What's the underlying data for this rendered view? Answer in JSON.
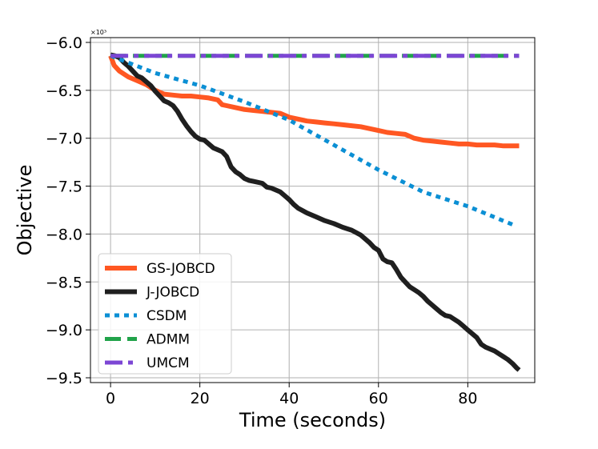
{
  "chart_data": {
    "type": "line",
    "title": "",
    "xlabel": "Time (seconds)",
    "ylabel": "Objective",
    "y_scale_label": "×10³",
    "xlim": [
      -4.5,
      95
    ],
    "ylim": [
      -9.55,
      -5.95
    ],
    "x_ticks": [
      0,
      20,
      40,
      60,
      80
    ],
    "x_tick_labels": [
      "0",
      "20",
      "40",
      "60",
      "80"
    ],
    "y_ticks": [
      -6.0,
      -6.5,
      -7.0,
      -7.5,
      -8.0,
      -8.5,
      -9.0,
      -9.5
    ],
    "y_tick_labels": [
      "−6.0",
      "−6.5",
      "−7.0",
      "−7.5",
      "−8.0",
      "−8.5",
      "−9.0",
      "−9.5"
    ],
    "grid": true,
    "legend_position": "lower-left",
    "series": [
      {
        "name": "GS-JOBCD",
        "color": "#ff5722",
        "dash": "solid",
        "points": [
          [
            0,
            -6.14
          ],
          [
            0.8,
            -6.24
          ],
          [
            2,
            -6.3
          ],
          [
            4,
            -6.36
          ],
          [
            6,
            -6.4
          ],
          [
            8,
            -6.44
          ],
          [
            10,
            -6.5
          ],
          [
            12,
            -6.54
          ],
          [
            14,
            -6.55
          ],
          [
            16,
            -6.56
          ],
          [
            18,
            -6.56
          ],
          [
            20,
            -6.57
          ],
          [
            22,
            -6.58
          ],
          [
            24,
            -6.6
          ],
          [
            25,
            -6.65
          ],
          [
            26,
            -6.66
          ],
          [
            28,
            -6.68
          ],
          [
            30,
            -6.7
          ],
          [
            32,
            -6.71
          ],
          [
            34,
            -6.72
          ],
          [
            36,
            -6.73
          ],
          [
            38,
            -6.74
          ],
          [
            40,
            -6.78
          ],
          [
            42,
            -6.8
          ],
          [
            44,
            -6.82
          ],
          [
            46,
            -6.83
          ],
          [
            48,
            -6.84
          ],
          [
            50,
            -6.85
          ],
          [
            52,
            -6.86
          ],
          [
            54,
            -6.87
          ],
          [
            56,
            -6.88
          ],
          [
            58,
            -6.9
          ],
          [
            60,
            -6.92
          ],
          [
            62,
            -6.94
          ],
          [
            64,
            -6.95
          ],
          [
            66,
            -6.96
          ],
          [
            68,
            -7.0
          ],
          [
            70,
            -7.02
          ],
          [
            72,
            -7.03
          ],
          [
            74,
            -7.04
          ],
          [
            76,
            -7.05
          ],
          [
            78,
            -7.06
          ],
          [
            80,
            -7.06
          ],
          [
            82,
            -7.07
          ],
          [
            84,
            -7.07
          ],
          [
            86,
            -7.07
          ],
          [
            88,
            -7.08
          ],
          [
            90,
            -7.08
          ],
          [
            91.5,
            -7.08
          ]
        ]
      },
      {
        "name": "J-JOBCD",
        "color": "#1f1f1f",
        "dash": "solid",
        "points": [
          [
            0,
            -6.13
          ],
          [
            1,
            -6.14
          ],
          [
            2,
            -6.16
          ],
          [
            3,
            -6.21
          ],
          [
            4,
            -6.25
          ],
          [
            5,
            -6.3
          ],
          [
            6,
            -6.35
          ],
          [
            7,
            -6.37
          ],
          [
            8,
            -6.41
          ],
          [
            9,
            -6.45
          ],
          [
            10,
            -6.51
          ],
          [
            11,
            -6.56
          ],
          [
            12,
            -6.61
          ],
          [
            13,
            -6.63
          ],
          [
            14,
            -6.66
          ],
          [
            15,
            -6.72
          ],
          [
            16,
            -6.8
          ],
          [
            17,
            -6.87
          ],
          [
            18,
            -6.93
          ],
          [
            19,
            -6.98
          ],
          [
            20,
            -7.01
          ],
          [
            21,
            -7.02
          ],
          [
            22,
            -7.06
          ],
          [
            23,
            -7.1
          ],
          [
            24,
            -7.12
          ],
          [
            25,
            -7.14
          ],
          [
            26,
            -7.19
          ],
          [
            27,
            -7.3
          ],
          [
            28,
            -7.35
          ],
          [
            29,
            -7.38
          ],
          [
            30,
            -7.42
          ],
          [
            31,
            -7.44
          ],
          [
            32,
            -7.45
          ],
          [
            34,
            -7.47
          ],
          [
            35,
            -7.51
          ],
          [
            36,
            -7.52
          ],
          [
            38,
            -7.56
          ],
          [
            39,
            -7.6
          ],
          [
            40,
            -7.64
          ],
          [
            41,
            -7.69
          ],
          [
            42,
            -7.73
          ],
          [
            44,
            -7.78
          ],
          [
            46,
            -7.82
          ],
          [
            48,
            -7.86
          ],
          [
            50,
            -7.89
          ],
          [
            52,
            -7.93
          ],
          [
            54,
            -7.96
          ],
          [
            56,
            -8.01
          ],
          [
            58,
            -8.09
          ],
          [
            59,
            -8.14
          ],
          [
            60,
            -8.17
          ],
          [
            61,
            -8.26
          ],
          [
            62,
            -8.29
          ],
          [
            63,
            -8.3
          ],
          [
            64,
            -8.37
          ],
          [
            65,
            -8.45
          ],
          [
            66,
            -8.5
          ],
          [
            67,
            -8.55
          ],
          [
            68,
            -8.58
          ],
          [
            69,
            -8.61
          ],
          [
            70,
            -8.65
          ],
          [
            71,
            -8.7
          ],
          [
            72,
            -8.74
          ],
          [
            73,
            -8.78
          ],
          [
            74,
            -8.82
          ],
          [
            75,
            -8.85
          ],
          [
            76,
            -8.86
          ],
          [
            77,
            -8.89
          ],
          [
            78,
            -8.92
          ],
          [
            79,
            -8.96
          ],
          [
            80,
            -9.0
          ],
          [
            81,
            -9.04
          ],
          [
            82,
            -9.08
          ],
          [
            83,
            -9.15
          ],
          [
            84,
            -9.18
          ],
          [
            85,
            -9.2
          ],
          [
            86,
            -9.22
          ],
          [
            87,
            -9.25
          ],
          [
            88,
            -9.28
          ],
          [
            89,
            -9.31
          ],
          [
            90,
            -9.35
          ],
          [
            91,
            -9.4
          ],
          [
            91.5,
            -9.42
          ]
        ]
      },
      {
        "name": "CSDM",
        "color": "#0b8fd4",
        "dash": "dotted",
        "points": [
          [
            0,
            -6.14
          ],
          [
            10,
            -6.32
          ],
          [
            20,
            -6.45
          ],
          [
            30,
            -6.62
          ],
          [
            40,
            -6.81
          ],
          [
            50,
            -7.07
          ],
          [
            60,
            -7.33
          ],
          [
            70,
            -7.56
          ],
          [
            80,
            -7.71
          ],
          [
            90,
            -7.9
          ]
        ]
      },
      {
        "name": "ADMM",
        "color": "#21a34a",
        "dash": "dashed",
        "points": [
          [
            0,
            -6.14
          ],
          [
            91.5,
            -6.14
          ]
        ]
      },
      {
        "name": "UMCM",
        "color": "#7c46d4",
        "dash": "dashdot",
        "points": [
          [
            0,
            -6.14
          ],
          [
            91.5,
            -6.14
          ]
        ]
      }
    ]
  }
}
